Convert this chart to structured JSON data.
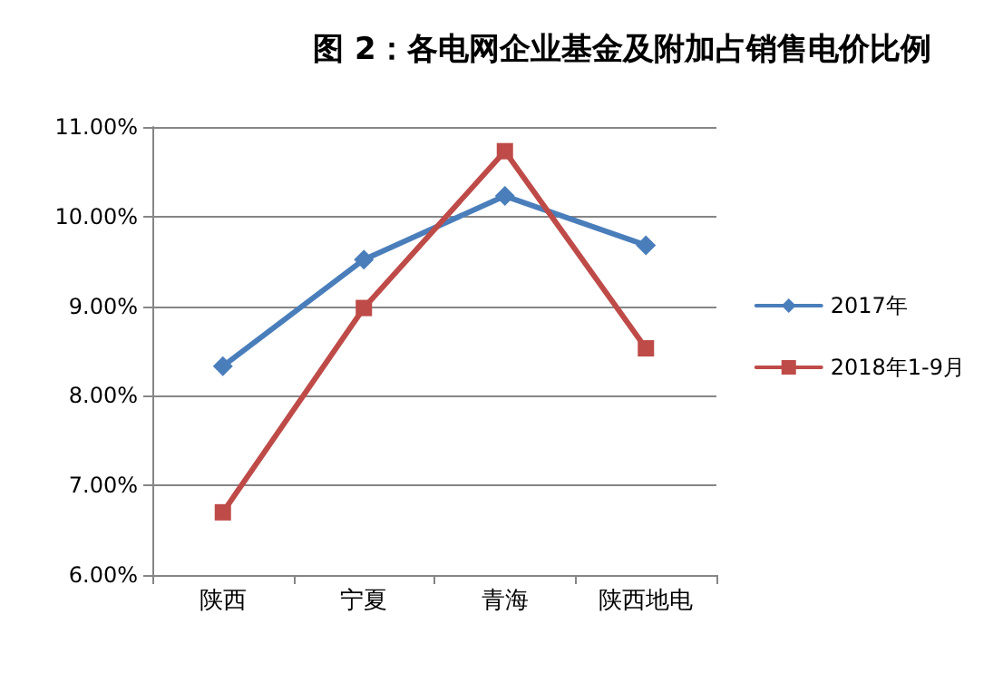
{
  "chart_data": {
    "type": "line",
    "title": "图 2：各电网企业基金及附加占销售电价比例",
    "categories": [
      "陕西",
      "宁夏",
      "青海",
      "陕西地电"
    ],
    "series": [
      {
        "name": "2017年",
        "color": "#4a7ebb",
        "marker": "diamond",
        "values": [
          8.33,
          9.52,
          10.23,
          9.68
        ]
      },
      {
        "name": "2018年1-9月",
        "color": "#be4b48",
        "marker": "square",
        "values": [
          6.7,
          8.98,
          10.73,
          8.53
        ]
      }
    ],
    "ylim": [
      6,
      11
    ],
    "yticks": [
      {
        "value": 6,
        "label": "6.00%"
      },
      {
        "value": 7,
        "label": "7.00%"
      },
      {
        "value": 8,
        "label": "8.00%"
      },
      {
        "value": 9,
        "label": "9.00%"
      },
      {
        "value": 10,
        "label": "10.00%"
      },
      {
        "value": 11,
        "label": "11.00%"
      }
    ],
    "grid": "y",
    "legend": "right",
    "line_style": "solid"
  }
}
